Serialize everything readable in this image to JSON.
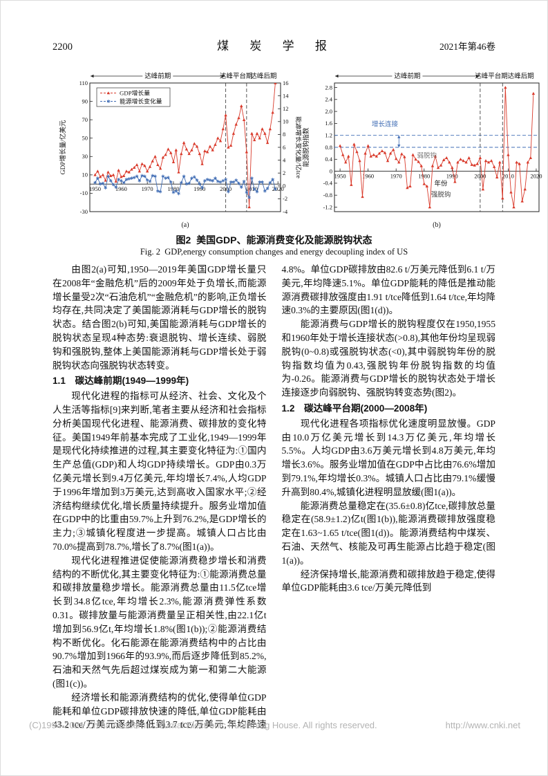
{
  "header": {
    "page_number": "2200",
    "journal_title": "煤 炭 学 报",
    "issue_info": "2021年第46卷"
  },
  "figure": {
    "caption_cn": "图2  美国GDP、能源消费变化及能源脱钩状态",
    "caption_en": "Fig. 2  GDP,energy consumption changes and energy decoupling index of US",
    "sublabels": {
      "a": "(a)",
      "b": "(b)"
    }
  },
  "chart_data": [
    {
      "id": "a",
      "type": "line",
      "sublabel": "(a)",
      "year_start": 1950,
      "x_range": [
        1948,
        2021
      ],
      "x_ticks": [
        1950,
        1960,
        1970,
        1980,
        1990,
        2000,
        2010,
        2020
      ],
      "period_labels": [
        "达峰前期",
        "达峰平台期",
        "达峰后期"
      ],
      "period_dividers": [
        2000,
        2008
      ],
      "left_axis": {
        "label": "GDP增长量/亿美元",
        "range": [
          -30,
          110
        ],
        "ticks": [
          110,
          90,
          70,
          50,
          30,
          10,
          -10,
          -30
        ]
      },
      "right_axis": {
        "label": "能源增长变化量/亿tce",
        "range": [
          -4,
          16
        ],
        "ticks": [
          16,
          14,
          12,
          10,
          8,
          6,
          4,
          2,
          0,
          -2,
          -4
        ]
      },
      "series": [
        {
          "name": "GDP增长量",
          "color": "#d93a2b",
          "axis": "left",
          "marker": "triangle",
          "values": [
            10,
            14,
            8,
            10,
            4,
            13,
            9,
            10,
            3,
            15,
            8,
            9,
            14,
            13,
            16,
            18,
            21,
            14,
            22,
            20,
            14,
            19,
            25,
            30,
            21,
            17,
            29,
            32,
            38,
            34,
            24,
            37,
            13,
            33,
            45,
            38,
            33,
            37,
            44,
            41,
            33,
            22,
            36,
            35,
            41,
            37,
            43,
            50,
            47,
            60,
            75,
            40,
            42,
            55,
            65,
            72,
            85,
            70,
            35,
            -25,
            55,
            48,
            55,
            50,
            60,
            55,
            45,
            60,
            78,
            110
          ]
        },
        {
          "name": "能源增长变化量",
          "color": "#3f6cb4",
          "axis": "right",
          "marker": "star",
          "values": [
            0.5,
            1.2,
            0.3,
            0.4,
            -0.3,
            1.5,
            0.8,
            0.2,
            -0.2,
            1.0,
            0.8,
            0.5,
            1.0,
            1.1,
            1.2,
            1.3,
            1.5,
            0.8,
            1.6,
            1.5,
            0.9,
            0.7,
            1.6,
            1.5,
            -0.8,
            -0.9,
            1.5,
            1.2,
            1.3,
            0.6,
            -1.0,
            -0.8,
            -1.2,
            0.5,
            1.5,
            0.3,
            0.4,
            1.2,
            1.4,
            0.9,
            0.3,
            -0.3,
            0.8,
            1.0,
            0.9,
            0.8,
            1.2,
            0.7,
            0.6,
            0.8,
            1.0,
            -0.9,
            0.6,
            0.6,
            0.9,
            0.4,
            -0.2,
            0.7,
            -1.0,
            -1.8,
            1.2,
            -0.5,
            -0.9,
            0.6,
            0.6,
            -0.8,
            -0.4,
            0.5,
            1.0,
            -0.5
          ]
        }
      ]
    },
    {
      "id": "b",
      "type": "line",
      "sublabel": "(b)",
      "year_start": 1950,
      "x_range": [
        1948,
        2021
      ],
      "x_ticks": [
        1950,
        1960,
        1970,
        1980,
        1990,
        2000,
        2010,
        2020
      ],
      "x_label": "年份",
      "period_labels": [
        "达峰前期",
        "达峰平台期",
        "达峰后期"
      ],
      "period_dividers": [
        2000,
        2008
      ],
      "y_axis": {
        "label": "能源脱钩指数",
        "range": [
          -1.35,
          2.95
        ],
        "ticks": [
          "2.8",
          "2.4",
          "2.0",
          "1.6",
          "1.2",
          "0.8",
          "0.4",
          "0",
          "-0.4",
          "-0.8",
          "-1.2"
        ]
      },
      "ref_lines": [
        {
          "value": 1.2,
          "color": "#3f6cb4"
        },
        {
          "value": 0.8,
          "color": "#3f6cb4"
        }
      ],
      "annotations": [
        {
          "text": "增长连接",
          "year": 1966,
          "value": 1.5,
          "color": "#3f6cb4",
          "arrow": {
            "year": 1971,
            "from": 1.2,
            "to": 0.8
          }
        },
        {
          "text": "弱脱钩",
          "year": 1981,
          "value": 0.45,
          "color": "#777777"
        },
        {
          "text": "强脱钩",
          "year": 1986,
          "value": -0.85,
          "color": "#444444"
        }
      ],
      "series": [
        {
          "name": "能源脱钩指数",
          "color": "#d93a2b",
          "marker": "triangle",
          "values": [
            0.85,
            0.55,
            0.3,
            0.5,
            -0.45,
            0.9,
            0.65,
            0.35,
            -0.85,
            0.6,
            0.85,
            0.5,
            0.55,
            0.5,
            0.6,
            0.68,
            0.62,
            0.35,
            0.6,
            0.72,
            0.42,
            0.3,
            0.58,
            0.48,
            -0.55,
            -0.5,
            0.55,
            0.4,
            0.32,
            0.18,
            -0.42,
            -0.5,
            -1.2,
            0.18,
            0.5,
            0.12,
            0.2,
            0.38,
            0.45,
            0.3,
            0.12,
            -0.35,
            0.3,
            0.4,
            0.35,
            0.3,
            0.45,
            0.22,
            0.2,
            0.25,
            0.45,
            -0.6,
            0.35,
            0.3,
            0.35,
            0.15,
            -0.2,
            0.3,
            -0.9,
            2.8,
            0.55,
            -0.7,
            -1.2,
            0.3,
            0.25,
            -1.0,
            -0.6,
            0.3,
            0.45,
            2.6
          ]
        }
      ]
    }
  ],
  "article": {
    "blocks": [
      {
        "type": "paragraph",
        "text": "由图2(a)可知,1950—2019年美国GDP增长量只在2008年“金融危机”后的2009年处于负增长,而能源增长量受2次“石油危机”“金融危机”的影响,正负增长均存在,共同决定了美国能源消耗与GDP增长的脱钩状态。结合图2(b)可知,美国能源消耗与GDP增长的脱钩状态呈现4种态势:衰退脱钩、增长连续、弱脱钩和强脱钩,整体上美国能源消耗与GDP增长处于弱脱钩状态向强脱钩状态转变。"
      },
      {
        "type": "heading",
        "text": "1.1　碳达峰前期(1949—1999年)"
      },
      {
        "type": "paragraph",
        "text": "现代化进程的指标可从经济、社会、文化及个人生活等指标[9]来判断,笔者主要从经济和社会指标分析美国现代化进程、能源消费、碳排放的变化特征。美国1949年前基本完成了工业化,1949—1999年是现代化持续推进的过程,其主要变化特征为:①国内生产总值(GDP)和人均GDP持续增长。GDP由0.3万亿美元增长到9.4万亿美元,年均增长7.4%,人均GDP于1996年增加到3万美元,达到高收入国家水平;②经济结构继续优化,增长质量持续提升。服务业增加值在GDP中的比重由59.7%上升到76.2%,是GDP增长的主力;③城镇化程度进一步提高。城镇人口占比由70.0%提高到78.7%,增长了8.7%(图1(a))。"
      },
      {
        "type": "paragraph",
        "text": "现代化进程推进促使能源消费稳步增长和消费结构的不断优化,其主要变化特征为:①能源消费总量和碳排放量稳步增长。能源消费总量由11.5亿tce增长到34.8亿tce,年均增长2.3%,能源消费弹性系数0.31。碳排放量与能源消费量呈正相关性,由22.1亿t增加到56.9亿t,年均增长1.8%(图1(b));②能源消费结构不断优化。化石能源在能源消费结构中的占比由90.7%增加到1966年的93.9%,而后逐步降低到85.2%,石油和天然气先后超过煤炭成为第一和第二大能源(图1(c))。"
      },
      {
        "type": "paragraph",
        "text": "经济增长和能源消费结构的优化,使得单位GDP能耗和单位GDP碳排放快速的降低,单位GDP能耗由43.2 tce/万美元逐步降低到3.7 tce/万美元,年均降速4.8%。单位GDP碳排放由82.6 t/万美元降低到6.1 t/万美元,年均降速5.1%。单位GDP能耗的降低是推动能源消费碳排放强度由1.91 t/tce降低到1.64 t/tce,年均降速0.3%的主要原因(图1(d))。"
      },
      {
        "type": "paragraph",
        "text": "能源消费与GDP增长的脱钩程度仅在1950,1955和1960年处于增长连接状态(>0.8),其他年份均呈现弱脱钩(0~0.8)或强脱钩状态(<0),其中弱脱钩年份的脱钩指数均值为0.43,强脱钩年份脱钩指数的均值为-0.26。能源消费与GDP增长的脱钩状态处于增长连接逐步向弱脱钩、强脱钩转变态势(图2)。"
      },
      {
        "type": "heading",
        "text": "1.2　碳达峰平台期(2000—2008年)"
      },
      {
        "type": "paragraph",
        "text": "现代化进程各项指标优化速度明显放慢。GDP由10.0万亿美元增长到14.3万亿美元,年均增长5.5%。人均GDP由3.6万美元增长到4.8万美元,年均增长3.6%。服务业增加值在GDP中占比由76.6%增加到79.1%,年均增长0.3%。城镇人口占比由79.1%缓慢升高到80.4%,城镇化进程明显放缓(图1(a))。"
      },
      {
        "type": "paragraph",
        "text": "能源消费总量稳定在(35.6±0.8)亿tce,碳排放总量稳定在(58.9±1.2)亿t(图1(b)),能源消费碳排放强度稳定在1.63~1.65 t/tce(图1(d))。能源消费结构中煤炭、石油、天然气、核能及可再生能源占比趋于稳定(图1(a))。"
      },
      {
        "type": "paragraph",
        "text": "经济保持增长,能源消费和碳排放趋于稳定,使得单位GDP能耗由3.6 tce/万美元降低到"
      }
    ]
  },
  "footer": {
    "copyright": "(C)1994-2021 China Academic Journal Electronic Publishing House. All rights reserved.",
    "url": "http://www.cnki.net"
  }
}
